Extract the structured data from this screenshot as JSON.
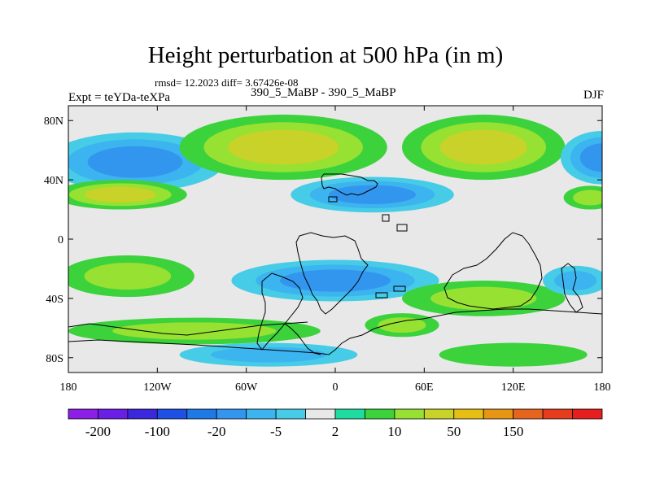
{
  "header": {
    "title": "Height perturbation at 500 hPa (in m)",
    "stats": "rmsd= 12.2023 diff= 3.67426e-08",
    "experiment": "Expt = teYDa-teXPa",
    "case": "390_5_MaBP - 390_5_MaBP",
    "season": "DJF"
  },
  "chart_data": {
    "type": "heatmap",
    "title": "Height perturbation at 500 hPa (in m)",
    "xlabel": "",
    "ylabel": "",
    "xlim": [
      -180,
      180
    ],
    "ylim": [
      -90,
      90
    ],
    "xticks": [
      {
        "value": -180,
        "label": "180"
      },
      {
        "value": -120,
        "label": "120W"
      },
      {
        "value": -60,
        "label": "60W"
      },
      {
        "value": 0,
        "label": "0"
      },
      {
        "value": 60,
        "label": "60E"
      },
      {
        "value": 120,
        "label": "120E"
      },
      {
        "value": 180,
        "label": "180"
      }
    ],
    "yticks": [
      {
        "value": 80,
        "label": "80N"
      },
      {
        "value": 40,
        "label": "40N"
      },
      {
        "value": 0,
        "label": "0"
      },
      {
        "value": -40,
        "label": "40S"
      },
      {
        "value": -80,
        "label": "80S"
      }
    ],
    "colorbar": {
      "colors": [
        "#8c1ee6",
        "#6a1ee6",
        "#3c28dc",
        "#1e50e6",
        "#1e78e6",
        "#3296ee",
        "#3cb4f0",
        "#46cce6",
        "#e8e8e8",
        "#1edca0",
        "#3cd23c",
        "#96e132",
        "#c8d228",
        "#e6be14",
        "#e69614",
        "#e6641e",
        "#e63c1e",
        "#e61e1e"
      ],
      "labels": [
        {
          "boundary": 1,
          "text": "-200"
        },
        {
          "boundary": 3,
          "text": "-100"
        },
        {
          "boundary": 5,
          "text": "-20"
        },
        {
          "boundary": 7,
          "text": "-5"
        },
        {
          "boundary": 9,
          "text": "2"
        },
        {
          "boundary": 11,
          "text": "10"
        },
        {
          "boundary": 13,
          "text": "50"
        },
        {
          "boundary": 15,
          "text": "150"
        }
      ]
    },
    "fields": [
      {
        "name": "north-pacific-low",
        "lon": -135,
        "lat": 52,
        "rlon": 60,
        "rlat": 20,
        "levels": [
          7,
          6,
          5
        ]
      },
      {
        "name": "north-atlantic-high",
        "lon": -35,
        "lat": 62,
        "rlon": 70,
        "rlat": 22,
        "levels": [
          10,
          11,
          12
        ]
      },
      {
        "name": "eurasia-high",
        "lon": 100,
        "lat": 62,
        "rlon": 55,
        "rlat": 22,
        "levels": [
          10,
          11,
          12
        ]
      },
      {
        "name": "far-east-low",
        "lon": 180,
        "lat": 55,
        "rlon": 28,
        "rlat": 18,
        "levels": [
          7,
          6,
          5
        ]
      },
      {
        "name": "pacific-high-nh",
        "lon": -145,
        "lat": 30,
        "rlon": 45,
        "rlat": 10,
        "levels": [
          10,
          11,
          12
        ]
      },
      {
        "name": "europe-low",
        "lon": 25,
        "lat": 30,
        "rlon": 55,
        "rlat": 12,
        "levels": [
          7,
          6,
          5
        ]
      },
      {
        "name": "west-pacific-high",
        "lon": 172,
        "lat": 28,
        "rlon": 18,
        "rlat": 8,
        "levels": [
          10,
          11
        ]
      },
      {
        "name": "sh-pacific-high",
        "lon": -140,
        "lat": -25,
        "rlon": 45,
        "rlat": 14,
        "levels": [
          10,
          11
        ]
      },
      {
        "name": "sh-atlantic-low",
        "lon": 0,
        "lat": -28,
        "rlon": 70,
        "rlat": 14,
        "levels": [
          7,
          6,
          5
        ]
      },
      {
        "name": "indian-ocean-high",
        "lon": 100,
        "lat": -40,
        "rlon": 55,
        "rlat": 12,
        "levels": [
          10,
          11
        ]
      },
      {
        "name": "sh-pacific-low",
        "lon": 162,
        "lat": -28,
        "rlon": 22,
        "rlat": 10,
        "levels": [
          7,
          6
        ]
      },
      {
        "name": "south-ocean-high-w",
        "lon": -95,
        "lat": -62,
        "rlon": 85,
        "rlat": 9,
        "levels": [
          10,
          11
        ]
      },
      {
        "name": "south-ocean-high-e",
        "lon": 45,
        "lat": -58,
        "rlon": 25,
        "rlat": 8,
        "levels": [
          10,
          11
        ]
      },
      {
        "name": "antarctic-low",
        "lon": -45,
        "lat": -78,
        "rlon": 60,
        "rlat": 8,
        "levels": [
          7,
          6
        ]
      },
      {
        "name": "antarctic-high-e",
        "lon": 120,
        "lat": -78,
        "rlon": 50,
        "rlat": 8,
        "levels": [
          10
        ]
      }
    ]
  }
}
